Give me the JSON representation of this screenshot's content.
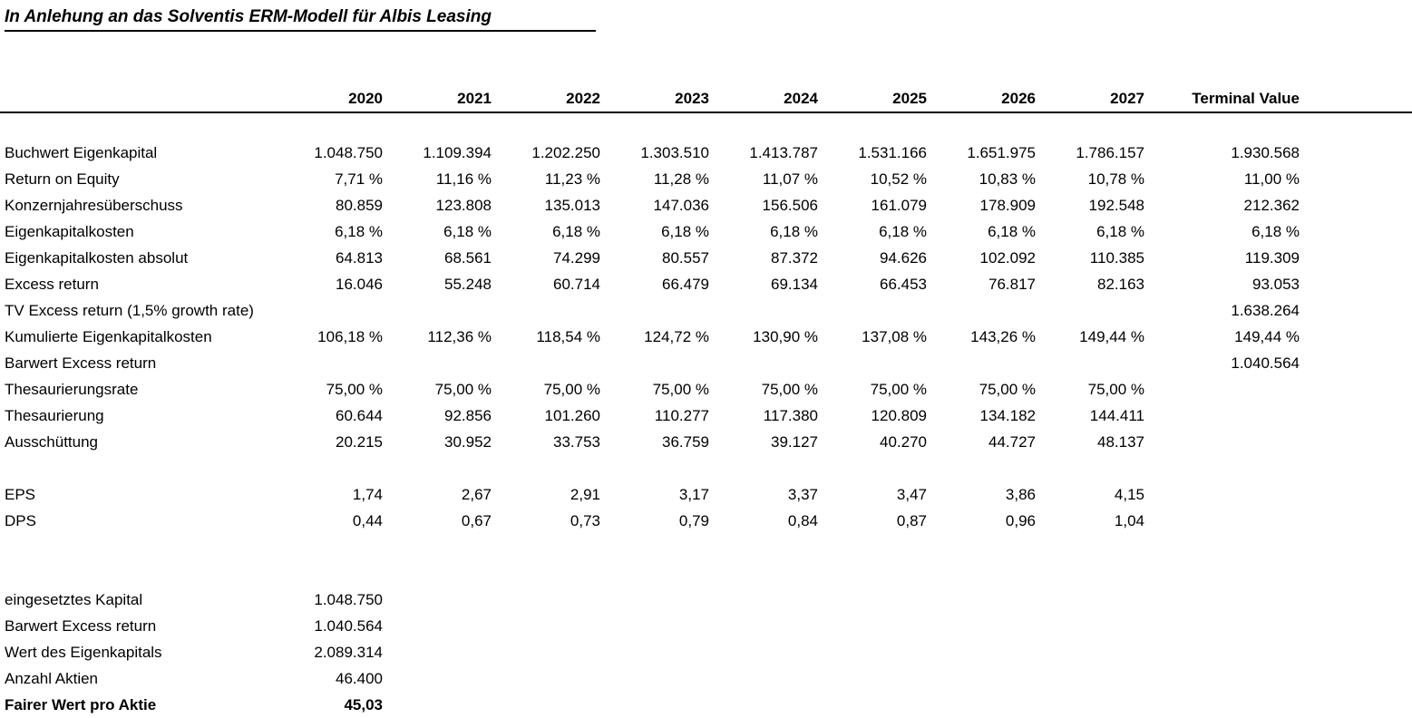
{
  "title": "In Anlehung an das Solventis ERM-Modell für Albis Leasing",
  "table": {
    "columns": [
      "2020",
      "2021",
      "2022",
      "2023",
      "2024",
      "2025",
      "2026",
      "2027",
      "Terminal Value"
    ],
    "rows": [
      {
        "label": "Buchwert Eigenkapital",
        "values": [
          "1.048.750",
          "1.109.394",
          "1.202.250",
          "1.303.510",
          "1.413.787",
          "1.531.166",
          "1.651.975",
          "1.786.157",
          "1.930.568"
        ]
      },
      {
        "label": "Return on Equity",
        "values": [
          "7,71 %",
          "11,16 %",
          "11,23 %",
          "11,28 %",
          "11,07 %",
          "10,52 %",
          "10,83 %",
          "10,78 %",
          "11,00 %"
        ]
      },
      {
        "label": "Konzernjahresüberschuss",
        "values": [
          "80.859",
          "123.808",
          "135.013",
          "147.036",
          "156.506",
          "161.079",
          "178.909",
          "192.548",
          "212.362"
        ]
      },
      {
        "label": "Eigenkapitalkosten",
        "values": [
          "6,18 %",
          "6,18 %",
          "6,18 %",
          "6,18 %",
          "6,18 %",
          "6,18 %",
          "6,18 %",
          "6,18 %",
          "6,18 %"
        ]
      },
      {
        "label": "Eigenkapitalkosten absolut",
        "values": [
          "64.813",
          "68.561",
          "74.299",
          "80.557",
          "87.372",
          "94.626",
          "102.092",
          "110.385",
          "119.309"
        ]
      },
      {
        "label": "Excess return",
        "values": [
          "16.046",
          "55.248",
          "60.714",
          "66.479",
          "69.134",
          "66.453",
          "76.817",
          "82.163",
          "93.053"
        ]
      },
      {
        "label": "TV Excess return (1,5% growth rate)",
        "values": [
          "",
          "",
          "",
          "",
          "",
          "",
          "",
          "",
          "1.638.264"
        ]
      },
      {
        "label": "Kumulierte Eigenkapitalkosten",
        "values": [
          "106,18 %",
          "112,36 %",
          "118,54 %",
          "124,72 %",
          "130,90 %",
          "137,08 %",
          "143,26 %",
          "149,44 %",
          "149,44 %"
        ]
      },
      {
        "label": "Barwert Excess return",
        "values": [
          "",
          "",
          "",
          "",
          "",
          "",
          "",
          "",
          "1.040.564"
        ]
      },
      {
        "label": "Thesaurierungsrate",
        "values": [
          "75,00 %",
          "75,00 %",
          "75,00 %",
          "75,00 %",
          "75,00 %",
          "75,00 %",
          "75,00 %",
          "75,00 %",
          ""
        ]
      },
      {
        "label": "Thesaurierung",
        "values": [
          "60.644",
          "92.856",
          "101.260",
          "110.277",
          "117.380",
          "120.809",
          "134.182",
          "144.411",
          ""
        ]
      },
      {
        "label": "Ausschüttung",
        "values": [
          "20.215",
          "30.952",
          "33.753",
          "36.759",
          "39.127",
          "40.270",
          "44.727",
          "48.137",
          ""
        ]
      },
      {
        "label": "EPS",
        "spacer_before": true,
        "values": [
          "1,74",
          "2,67",
          "2,91",
          "3,17",
          "3,37",
          "3,47",
          "3,86",
          "4,15",
          ""
        ]
      },
      {
        "label": "DPS",
        "values": [
          "0,44",
          "0,67",
          "0,73",
          "0,79",
          "0,84",
          "0,87",
          "0,96",
          "1,04",
          ""
        ]
      }
    ]
  },
  "summary": {
    "rows": [
      {
        "label": "eingesetztes Kapital",
        "value": "1.048.750"
      },
      {
        "label": "Barwert Excess return",
        "value": "1.040.564"
      },
      {
        "label": "Wert des Eigenkapitals",
        "value": "2.089.314"
      },
      {
        "label": "Anzahl Aktien",
        "value": "46.400"
      },
      {
        "label": "Fairer Wert pro Aktie",
        "value": "45,03",
        "bold": true
      }
    ]
  }
}
